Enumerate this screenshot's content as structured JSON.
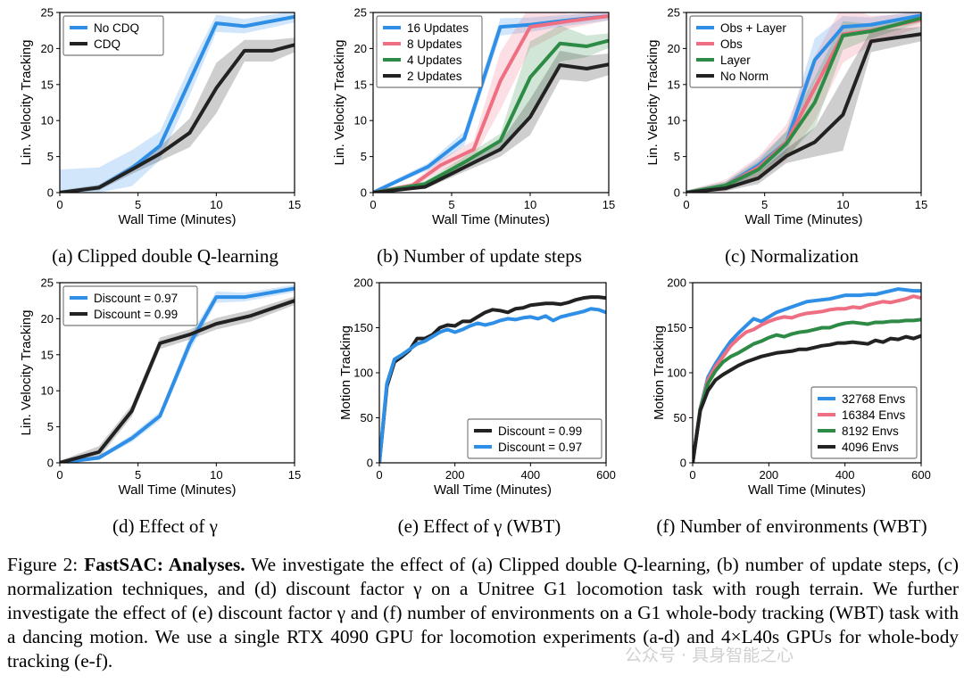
{
  "chart_data": [
    {
      "type": "line",
      "id": "a",
      "subcaption": "(a) Clipped double Q-learning",
      "xlabel": "Wall Time (Minutes)",
      "ylabel": "Lin. Velocity Tracking",
      "xlim": [
        0,
        15
      ],
      "ylim": [
        0,
        25
      ],
      "xticks": [
        0,
        5,
        10,
        15
      ],
      "yticks": [
        0,
        5,
        10,
        15,
        20,
        25
      ],
      "legend_loc": "top-left",
      "series": [
        {
          "name": "No CDQ",
          "color": "#2f8fe6",
          "x": [
            0,
            2.5,
            4.6,
            6.4,
            8.3,
            10,
            11.8,
            15
          ],
          "y": [
            0,
            0.7,
            3.4,
            6.5,
            15.5,
            23.5,
            23.1,
            24.4
          ],
          "band": [
            3.2,
            2.8,
            2.5,
            2.0,
            2.0,
            1.2,
            1.0,
            0.8
          ]
        },
        {
          "name": "CDQ",
          "color": "#222222",
          "x": [
            0,
            2.5,
            4.6,
            6.4,
            8.3,
            10,
            11.8,
            13.6,
            15
          ],
          "y": [
            0,
            0.7,
            3.2,
            5.4,
            8.3,
            14.5,
            19.7,
            19.7,
            20.5
          ],
          "band": [
            0.3,
            0.4,
            0.6,
            1.0,
            2.0,
            3.5,
            1.5,
            1.5,
            1.0
          ]
        }
      ]
    },
    {
      "type": "line",
      "id": "b",
      "subcaption": "(b) Number of update steps",
      "xlabel": "Wall Time (Minutes)",
      "ylabel": "Lin. Velocity Tracking",
      "xlim": [
        0,
        15
      ],
      "ylim": [
        0,
        25
      ],
      "xticks": [
        0,
        5,
        10,
        15
      ],
      "yticks": [
        0,
        5,
        10,
        15,
        20,
        25
      ],
      "legend_loc": "top-left",
      "series": [
        {
          "name": "16 Updates",
          "color": "#2f8fe6",
          "x": [
            0,
            3.5,
            5.8,
            8.1,
            10,
            11.9,
            15
          ],
          "y": [
            0,
            3.6,
            7.5,
            23,
            23.3,
            23.8,
            24.5
          ],
          "band": [
            0.3,
            0.5,
            1.0,
            1.2,
            1.0,
            0.8,
            0.6
          ]
        },
        {
          "name": "8 Updates",
          "color": "#ef6f82",
          "x": [
            0,
            2.5,
            4.3,
            6.4,
            8.1,
            10,
            12.5,
            15
          ],
          "y": [
            0,
            1.0,
            3.8,
            6.0,
            15.5,
            23,
            23.8,
            24.5
          ],
          "band": [
            0.3,
            0.4,
            0.8,
            1.2,
            4.0,
            3.0,
            1.0,
            0.6
          ]
        },
        {
          "name": "4 Updates",
          "color": "#2e8b45",
          "x": [
            0,
            3.3,
            5.8,
            8.1,
            10,
            11.9,
            13.6,
            15
          ],
          "y": [
            0,
            1.2,
            4.2,
            7.2,
            16.0,
            20.7,
            20.3,
            21.1
          ],
          "band": [
            0.3,
            0.4,
            0.8,
            1.0,
            5.0,
            2.5,
            1.5,
            1.0
          ]
        },
        {
          "name": "2 Updates",
          "color": "#222222",
          "x": [
            0,
            3.3,
            5.8,
            8.1,
            10,
            11.9,
            13.6,
            15
          ],
          "y": [
            0,
            0.8,
            3.5,
            6.0,
            10.5,
            17.7,
            17.2,
            17.8
          ],
          "band": [
            0.3,
            0.3,
            0.6,
            1.0,
            2.5,
            2.0,
            1.8,
            1.5
          ]
        }
      ]
    },
    {
      "type": "line",
      "id": "c",
      "subcaption": "(c) Normalization",
      "xlabel": "Wall Time (Minutes)",
      "ylabel": "Lin. Velocity Tracking",
      "xlim": [
        0,
        15
      ],
      "ylim": [
        0,
        25
      ],
      "xticks": [
        0,
        5,
        10,
        15
      ],
      "yticks": [
        0,
        5,
        10,
        15,
        20,
        25
      ],
      "legend_loc": "top-left",
      "series": [
        {
          "name": "Obs + Layer",
          "color": "#2f8fe6",
          "x": [
            0,
            2.5,
            4.6,
            6.4,
            8.2,
            10,
            11.8,
            15
          ],
          "y": [
            0,
            1.0,
            3.8,
            7.0,
            18.4,
            23.0,
            23.3,
            24.6
          ],
          "band": [
            0.3,
            0.5,
            1.0,
            1.5,
            3.0,
            1.5,
            1.0,
            0.6
          ]
        },
        {
          "name": "Obs",
          "color": "#ef6f82",
          "x": [
            0,
            2.5,
            4.6,
            6.4,
            8.2,
            10,
            11.8,
            15
          ],
          "y": [
            0,
            1.0,
            3.5,
            7.0,
            14.5,
            22.0,
            22.5,
            24.0
          ],
          "band": [
            0.3,
            0.8,
            1.5,
            2.5,
            4.5,
            4.0,
            2.0,
            1.0
          ]
        },
        {
          "name": "Layer",
          "color": "#2e8b45",
          "x": [
            0,
            2.5,
            4.6,
            6.4,
            8.2,
            10,
            11.8,
            15
          ],
          "y": [
            0,
            1.0,
            3.2,
            6.8,
            12.5,
            21.8,
            22.4,
            24.2
          ],
          "band": [
            0.3,
            0.5,
            1.2,
            1.8,
            3.5,
            2.0,
            1.0,
            0.6
          ]
        },
        {
          "name": "No Norm",
          "color": "#222222",
          "x": [
            0,
            2.5,
            4.6,
            6.4,
            8.2,
            10,
            11.8,
            15
          ],
          "y": [
            0,
            0.6,
            2.0,
            5.1,
            7.0,
            10.8,
            21.0,
            22.0
          ],
          "band": [
            0.2,
            0.4,
            0.8,
            1.0,
            2.0,
            5.0,
            1.5,
            1.0
          ]
        }
      ]
    },
    {
      "type": "line",
      "id": "d",
      "subcaption": "(d) Effect of γ",
      "xlabel": "Wall Time (Minutes)",
      "ylabel": "Lin. Velocity Tracking",
      "xlim": [
        0,
        15
      ],
      "ylim": [
        0,
        25
      ],
      "xticks": [
        0,
        5,
        10,
        15
      ],
      "yticks": [
        0,
        5,
        10,
        15,
        20,
        25
      ],
      "legend_loc": "top-left",
      "series": [
        {
          "name": "Discount = 0.97",
          "color": "#2f8fe6",
          "x": [
            0,
            2.5,
            4.6,
            6.4,
            8.3,
            10,
            11.8,
            15
          ],
          "y": [
            0,
            0.7,
            3.4,
            6.5,
            16.5,
            23.0,
            23.0,
            24.2
          ],
          "band": [
            0.2,
            0.3,
            0.5,
            0.6,
            1.0,
            0.8,
            0.6,
            0.5
          ]
        },
        {
          "name": "Discount = 0.99",
          "color": "#222222",
          "x": [
            0,
            2.5,
            4.6,
            6.4,
            8.3,
            10,
            12.2,
            15
          ],
          "y": [
            0,
            1.5,
            7.2,
            16.6,
            17.8,
            19.3,
            20.4,
            22.5
          ],
          "band": [
            0.3,
            0.8,
            0.8,
            0.8,
            0.7,
            0.8,
            0.8,
            0.6
          ]
        }
      ]
    },
    {
      "type": "line",
      "id": "e",
      "subcaption": "(e) Effect of γ (WBT)",
      "xlabel": "Wall Time (Minutes)",
      "ylabel": "Motion Tracking",
      "xlim": [
        0,
        600
      ],
      "ylim": [
        0,
        200
      ],
      "xticks": [
        0,
        200,
        400,
        600
      ],
      "yticks": [
        0,
        50,
        100,
        150,
        200
      ],
      "legend_loc": "bottom-right",
      "series": [
        {
          "name": "Discount = 0.99",
          "color": "#222222",
          "x": [
            0,
            20,
            40,
            60,
            80,
            100,
            120,
            140,
            160,
            180,
            200,
            220,
            240,
            260,
            280,
            300,
            320,
            340,
            360,
            380,
            400,
            420,
            440,
            460,
            480,
            500,
            520,
            540,
            560,
            580,
            600
          ],
          "y": [
            0,
            85,
            112,
            118,
            125,
            138,
            138,
            142,
            150,
            153,
            152,
            157,
            157,
            162,
            167,
            170,
            169,
            167,
            171,
            172,
            175,
            176,
            177,
            177,
            176,
            178,
            181,
            183,
            184,
            184,
            183
          ]
        },
        {
          "name": "Discount = 0.97",
          "color": "#2f8fe6",
          "x": [
            0,
            20,
            40,
            60,
            80,
            100,
            120,
            140,
            160,
            180,
            200,
            220,
            240,
            260,
            280,
            300,
            320,
            340,
            360,
            380,
            400,
            420,
            440,
            460,
            480,
            500,
            520,
            540,
            560,
            580,
            600
          ],
          "y": [
            0,
            88,
            115,
            120,
            126,
            132,
            135,
            140,
            145,
            148,
            145,
            148,
            152,
            155,
            153,
            155,
            158,
            160,
            159,
            161,
            162,
            160,
            163,
            158,
            162,
            164,
            166,
            168,
            171,
            170,
            167
          ]
        }
      ]
    },
    {
      "type": "line",
      "id": "f",
      "subcaption": "(f) Number of environments (WBT)",
      "xlabel": "Wall Time (Minutes)",
      "ylabel": "Motion Tracking",
      "xlim": [
        0,
        600
      ],
      "ylim": [
        0,
        200
      ],
      "xticks": [
        0,
        200,
        400,
        600
      ],
      "yticks": [
        0,
        50,
        100,
        150,
        200
      ],
      "legend_loc": "bottom-right",
      "series": [
        {
          "name": "32768 Envs",
          "color": "#2f8fe6",
          "x": [
            0,
            20,
            40,
            60,
            80,
            100,
            120,
            140,
            160,
            180,
            200,
            220,
            240,
            260,
            280,
            300,
            320,
            340,
            360,
            380,
            400,
            420,
            440,
            460,
            480,
            500,
            520,
            540,
            560,
            580,
            600
          ],
          "y": [
            0,
            60,
            95,
            110,
            123,
            135,
            144,
            152,
            160,
            157,
            162,
            167,
            170,
            173,
            176,
            179,
            180,
            181,
            182,
            184,
            186,
            186,
            186,
            187,
            187,
            189,
            191,
            193,
            192,
            191,
            191
          ]
        },
        {
          "name": "16384 Envs",
          "color": "#ef6f82",
          "x": [
            0,
            20,
            40,
            60,
            80,
            100,
            120,
            140,
            160,
            180,
            200,
            220,
            240,
            260,
            280,
            300,
            320,
            340,
            360,
            380,
            400,
            420,
            440,
            460,
            480,
            500,
            520,
            540,
            560,
            580,
            600
          ],
          "y": [
            0,
            60,
            92,
            107,
            118,
            130,
            138,
            145,
            148,
            153,
            157,
            160,
            162,
            161,
            164,
            166,
            167,
            168,
            170,
            171,
            171,
            173,
            172,
            175,
            177,
            179,
            178,
            180,
            182,
            185,
            183
          ]
        },
        {
          "name": "8192 Envs",
          "color": "#2e8b45",
          "x": [
            0,
            20,
            40,
            60,
            80,
            100,
            120,
            140,
            160,
            180,
            200,
            220,
            240,
            260,
            280,
            300,
            320,
            340,
            360,
            380,
            400,
            420,
            440,
            460,
            480,
            500,
            520,
            540,
            560,
            580,
            600
          ],
          "y": [
            0,
            60,
            88,
            102,
            112,
            118,
            122,
            127,
            132,
            135,
            139,
            142,
            140,
            143,
            145,
            146,
            148,
            150,
            150,
            153,
            155,
            156,
            155,
            154,
            156,
            156,
            157,
            157,
            158,
            158,
            159
          ]
        },
        {
          "name": "4096 Envs",
          "color": "#222222",
          "x": [
            0,
            20,
            40,
            60,
            80,
            100,
            120,
            140,
            160,
            180,
            200,
            220,
            240,
            260,
            280,
            300,
            320,
            340,
            360,
            380,
            400,
            420,
            440,
            460,
            480,
            500,
            520,
            540,
            560,
            580,
            600
          ],
          "y": [
            0,
            58,
            80,
            92,
            98,
            103,
            108,
            112,
            115,
            118,
            120,
            122,
            123,
            124,
            126,
            126,
            128,
            130,
            131,
            133,
            133,
            134,
            133,
            132,
            136,
            134,
            138,
            137,
            140,
            138,
            141
          ]
        }
      ]
    }
  ],
  "caption": {
    "label": "Figure 2:",
    "title": "FastSAC: Analyses.",
    "text": "We investigate the effect of (a) Clipped double Q-learning, (b) number of update steps, (c) normalization techniques, and (d) discount factor γ on a Unitree G1 locomotion task with rough terrain. We further investigate the effect of (e) discount factor γ and (f) number of environments on a G1 whole-body tracking (WBT) task with a dancing motion. We use a single RTX 4090 GPU for locomotion experiments (a-d) and 4×L40s GPUs for whole-body tracking (e-f)."
  },
  "watermark": "公众号 · 具身智能之心"
}
